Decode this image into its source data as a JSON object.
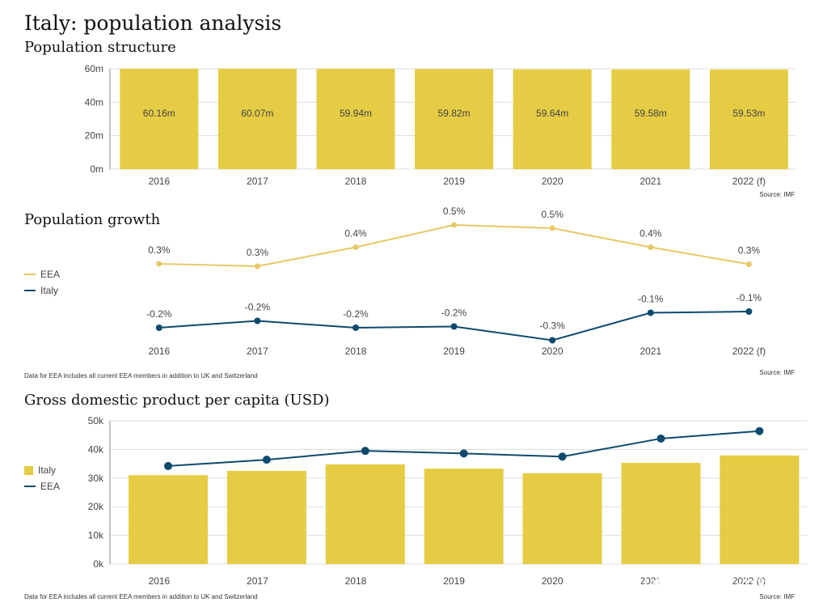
{
  "page": {
    "title": "Italy: population analysis"
  },
  "colors": {
    "yellow_bar": "#E6CC44",
    "eea_line": "#E8C866",
    "italy_line": "#0E4A6E",
    "grid": "#dddddd"
  },
  "population_structure": {
    "section_title": "Population structure",
    "source": "Source: IMF"
  },
  "population_growth": {
    "section_title": "Population growth",
    "note": "Data for EEA includes all current EEA members in addition to UK and Switzerland",
    "source": "Source: IMF",
    "legend": [
      {
        "label": "EEA",
        "color": "#E8C866"
      },
      {
        "label": "Italy",
        "color": "#0E4A6E"
      }
    ]
  },
  "gdp": {
    "section_title": "Gross domestic product per capita (USD)",
    "note": "Data for EEA includes all current EEA members in addition to UK and Switzerland",
    "source": "Source: IMF",
    "legend": [
      {
        "label": "Italy",
        "color": "#E6CC44"
      },
      {
        "label": "EEA",
        "color": "#0E4A6E"
      }
    ]
  },
  "chart_data": [
    {
      "type": "bar",
      "title": "Population structure",
      "categories": [
        "2016",
        "2017",
        "2018",
        "2019",
        "2020",
        "2021",
        "2022 (f)"
      ],
      "values": [
        60.16,
        60.07,
        59.94,
        59.82,
        59.64,
        59.58,
        59.53
      ],
      "data_labels": [
        "60.16m",
        "60.07m",
        "59.94m",
        "59.82m",
        "59.64m",
        "59.58m",
        "59.53m"
      ],
      "ylim": [
        0,
        60
      ],
      "yticks": [
        0,
        20,
        40,
        60
      ],
      "ytick_labels": [
        "0m",
        "20m",
        "40m",
        "60m"
      ],
      "grid": true
    },
    {
      "type": "line",
      "title": "Population growth",
      "categories": [
        "2016",
        "2017",
        "2018",
        "2019",
        "2020",
        "2021",
        "2022 (f)"
      ],
      "series": [
        {
          "name": "EEA",
          "values": [
            0.3,
            0.3,
            0.4,
            0.5,
            0.5,
            0.4,
            0.3
          ],
          "labels": [
            "0.3%",
            "0.3%",
            "0.4%",
            "0.5%",
            "0.5%",
            "0.4%",
            "0.3%"
          ]
        },
        {
          "name": "Italy",
          "values": [
            -0.2,
            -0.2,
            -0.2,
            -0.2,
            -0.3,
            -0.1,
            -0.1
          ],
          "labels": [
            "-0.2%",
            "-0.2%",
            "-0.2%",
            "-0.2%",
            "-0.3%",
            "-0.1%",
            "-0.1%"
          ]
        }
      ],
      "legend": "left"
    },
    {
      "type": "bar",
      "title": "Gross domestic product per capita (USD)",
      "categories": [
        "2016",
        "2017",
        "2018",
        "2019",
        "2020",
        "2021",
        "2022 (f)"
      ],
      "series": [
        {
          "name": "Italy",
          "kind": "bar",
          "values": [
            31000,
            32500,
            34800,
            33300,
            31700,
            35300,
            37900
          ]
        },
        {
          "name": "EEA",
          "kind": "line",
          "values": [
            34200,
            36400,
            39500,
            38600,
            37500,
            43800,
            46400
          ]
        }
      ],
      "ylim": [
        0,
        50000
      ],
      "yticks": [
        0,
        10000,
        20000,
        30000,
        40000,
        50000
      ],
      "ytick_labels": [
        "0k",
        "10k",
        "20k",
        "30k",
        "40k",
        "50k"
      ],
      "grid": true,
      "legend": "left"
    }
  ],
  "watermark": "知乎 @外贸小猪"
}
